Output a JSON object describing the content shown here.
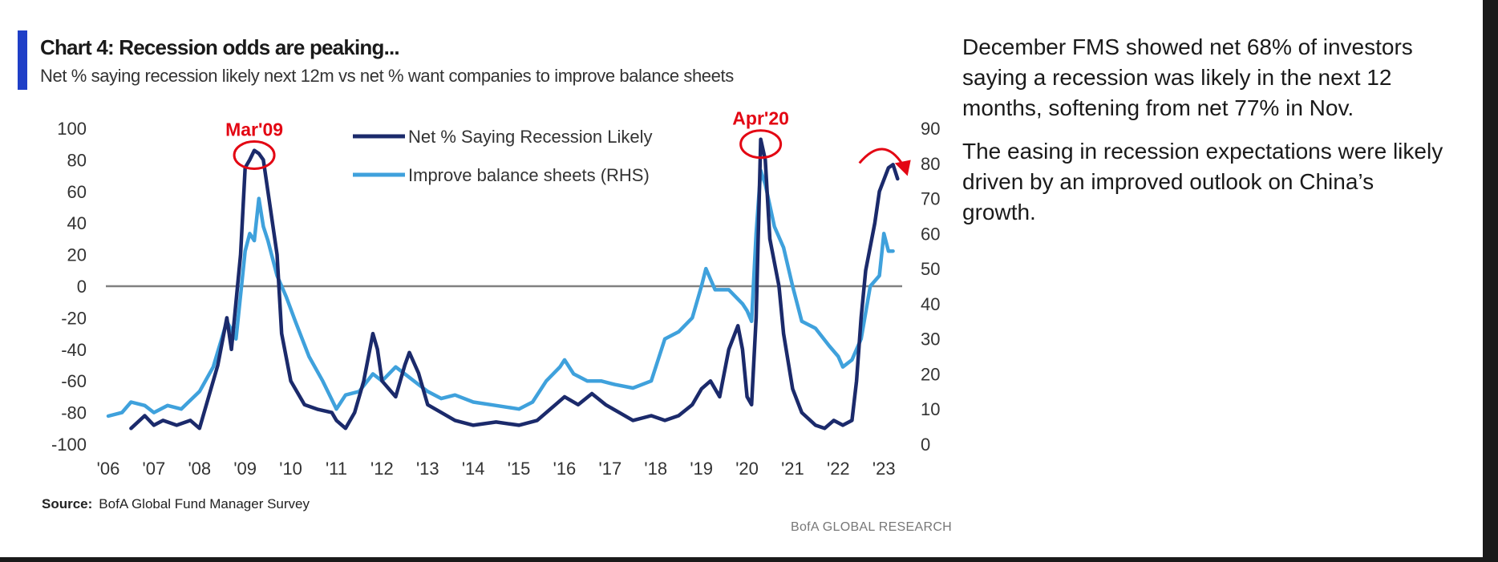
{
  "title": "Chart 4: Recession odds are peaking...",
  "subtitle": "Net % saying recession likely next 12m vs net % want companies to improve balance sheets",
  "source_label": "Source:",
  "source_text": "BofA Global Fund Manager Survey",
  "brand": "BofA GLOBAL RESEARCH",
  "commentary": [
    "December FMS showed net 68% of investors saying a recession was likely in the next 12 months, softening from net 77% in Nov.",
    "The easing in recession expectations were likely driven by an improved outlook on China’s growth."
  ],
  "colors": {
    "recession": "#1b2a6b",
    "balance": "#3fa1dc",
    "annotation": "#e30613",
    "zero_line": "#808080",
    "accent": "#1f3fc7"
  },
  "chart_data": {
    "type": "line",
    "x_ticks": [
      "'06",
      "'07",
      "'08",
      "'09",
      "'10",
      "'11",
      "'12",
      "'13",
      "'14",
      "'15",
      "'16",
      "'17",
      "'18",
      "'19",
      "'20",
      "'21",
      "'22",
      "'23"
    ],
    "xlim": [
      2006,
      2023.4
    ],
    "y_left": {
      "ylim": [
        -100,
        100
      ],
      "ticks": [
        100,
        80,
        60,
        40,
        20,
        0,
        -20,
        -40,
        -60,
        -80,
        -100
      ]
    },
    "y_right": {
      "ylim": [
        0,
        90
      ],
      "ticks": [
        90,
        80,
        70,
        60,
        50,
        40,
        30,
        20,
        10,
        0
      ]
    },
    "zero_line": 0,
    "annotations": [
      {
        "label": "Mar'09",
        "x": 2009.2,
        "y": 84,
        "axis": "left"
      },
      {
        "label": "Apr'20",
        "x": 2020.3,
        "y": 91,
        "axis": "left"
      }
    ],
    "series": [
      {
        "name": "Net % Saying Recession Likely",
        "axis": "left",
        "points": [
          [
            2006.5,
            -90
          ],
          [
            2006.8,
            -82
          ],
          [
            2007.0,
            -88
          ],
          [
            2007.2,
            -85
          ],
          [
            2007.5,
            -88
          ],
          [
            2007.8,
            -85
          ],
          [
            2008.0,
            -90
          ],
          [
            2008.2,
            -70
          ],
          [
            2008.4,
            -50
          ],
          [
            2008.6,
            -20
          ],
          [
            2008.7,
            -40
          ],
          [
            2008.9,
            20
          ],
          [
            2009.0,
            75
          ],
          [
            2009.1,
            80
          ],
          [
            2009.2,
            86
          ],
          [
            2009.3,
            84
          ],
          [
            2009.4,
            80
          ],
          [
            2009.5,
            60
          ],
          [
            2009.7,
            20
          ],
          [
            2009.8,
            -30
          ],
          [
            2010.0,
            -60
          ],
          [
            2010.3,
            -75
          ],
          [
            2010.6,
            -78
          ],
          [
            2010.9,
            -80
          ],
          [
            2011.0,
            -85
          ],
          [
            2011.2,
            -90
          ],
          [
            2011.4,
            -80
          ],
          [
            2011.6,
            -60
          ],
          [
            2011.8,
            -30
          ],
          [
            2011.9,
            -40
          ],
          [
            2012.0,
            -60
          ],
          [
            2012.3,
            -70
          ],
          [
            2012.5,
            -50
          ],
          [
            2012.6,
            -42
          ],
          [
            2012.8,
            -55
          ],
          [
            2013.0,
            -75
          ],
          [
            2013.3,
            -80
          ],
          [
            2013.6,
            -85
          ],
          [
            2014.0,
            -88
          ],
          [
            2014.5,
            -86
          ],
          [
            2015.0,
            -88
          ],
          [
            2015.4,
            -85
          ],
          [
            2015.8,
            -75
          ],
          [
            2016.0,
            -70
          ],
          [
            2016.3,
            -75
          ],
          [
            2016.6,
            -68
          ],
          [
            2016.9,
            -75
          ],
          [
            2017.2,
            -80
          ],
          [
            2017.5,
            -85
          ],
          [
            2017.9,
            -82
          ],
          [
            2018.2,
            -85
          ],
          [
            2018.5,
            -82
          ],
          [
            2018.8,
            -75
          ],
          [
            2019.0,
            -65
          ],
          [
            2019.2,
            -60
          ],
          [
            2019.4,
            -70
          ],
          [
            2019.6,
            -40
          ],
          [
            2019.8,
            -25
          ],
          [
            2019.9,
            -40
          ],
          [
            2020.0,
            -70
          ],
          [
            2020.1,
            -75
          ],
          [
            2020.2,
            -20
          ],
          [
            2020.3,
            93
          ],
          [
            2020.4,
            80
          ],
          [
            2020.5,
            30
          ],
          [
            2020.7,
            0
          ],
          [
            2020.8,
            -30
          ],
          [
            2021.0,
            -65
          ],
          [
            2021.2,
            -80
          ],
          [
            2021.5,
            -88
          ],
          [
            2021.7,
            -90
          ],
          [
            2021.9,
            -85
          ],
          [
            2022.1,
            -88
          ],
          [
            2022.3,
            -85
          ],
          [
            2022.4,
            -60
          ],
          [
            2022.5,
            -20
          ],
          [
            2022.6,
            10
          ],
          [
            2022.8,
            40
          ],
          [
            2022.9,
            60
          ],
          [
            2023.1,
            75
          ],
          [
            2023.2,
            77
          ],
          [
            2023.3,
            68
          ]
        ]
      },
      {
        "name": "Improve balance sheets (RHS)",
        "axis": "right",
        "points": [
          [
            2006.0,
            8
          ],
          [
            2006.3,
            9
          ],
          [
            2006.5,
            12
          ],
          [
            2006.8,
            11
          ],
          [
            2007.0,
            9
          ],
          [
            2007.3,
            11
          ],
          [
            2007.6,
            10
          ],
          [
            2008.0,
            15
          ],
          [
            2008.3,
            22
          ],
          [
            2008.6,
            35
          ],
          [
            2008.8,
            30
          ],
          [
            2009.0,
            55
          ],
          [
            2009.1,
            60
          ],
          [
            2009.2,
            58
          ],
          [
            2009.3,
            70
          ],
          [
            2009.4,
            62
          ],
          [
            2009.5,
            58
          ],
          [
            2009.7,
            48
          ],
          [
            2009.9,
            42
          ],
          [
            2010.1,
            35
          ],
          [
            2010.4,
            25
          ],
          [
            2010.7,
            18
          ],
          [
            2011.0,
            10
          ],
          [
            2011.2,
            14
          ],
          [
            2011.5,
            15
          ],
          [
            2011.8,
            20
          ],
          [
            2012.0,
            18
          ],
          [
            2012.3,
            22
          ],
          [
            2012.5,
            20
          ],
          [
            2012.8,
            17
          ],
          [
            2013.0,
            15
          ],
          [
            2013.3,
            13
          ],
          [
            2013.6,
            14
          ],
          [
            2014.0,
            12
          ],
          [
            2014.5,
            11
          ],
          [
            2015.0,
            10
          ],
          [
            2015.3,
            12
          ],
          [
            2015.6,
            18
          ],
          [
            2015.9,
            22
          ],
          [
            2016.0,
            24
          ],
          [
            2016.2,
            20
          ],
          [
            2016.5,
            18
          ],
          [
            2016.8,
            18
          ],
          [
            2017.1,
            17
          ],
          [
            2017.5,
            16
          ],
          [
            2017.9,
            18
          ],
          [
            2018.2,
            30
          ],
          [
            2018.5,
            32
          ],
          [
            2018.8,
            36
          ],
          [
            2019.0,
            45
          ],
          [
            2019.1,
            50
          ],
          [
            2019.3,
            44
          ],
          [
            2019.6,
            44
          ],
          [
            2019.9,
            40
          ],
          [
            2020.0,
            38
          ],
          [
            2020.1,
            35
          ],
          [
            2020.2,
            60
          ],
          [
            2020.3,
            78
          ],
          [
            2020.4,
            74
          ],
          [
            2020.6,
            62
          ],
          [
            2020.8,
            56
          ],
          [
            2021.0,
            45
          ],
          [
            2021.2,
            35
          ],
          [
            2021.5,
            33
          ],
          [
            2021.8,
            28
          ],
          [
            2022.0,
            25
          ],
          [
            2022.1,
            22
          ],
          [
            2022.3,
            24
          ],
          [
            2022.5,
            30
          ],
          [
            2022.7,
            45
          ],
          [
            2022.9,
            48
          ],
          [
            2023.0,
            60
          ],
          [
            2023.1,
            55
          ],
          [
            2023.2,
            55
          ]
        ]
      }
    ]
  }
}
